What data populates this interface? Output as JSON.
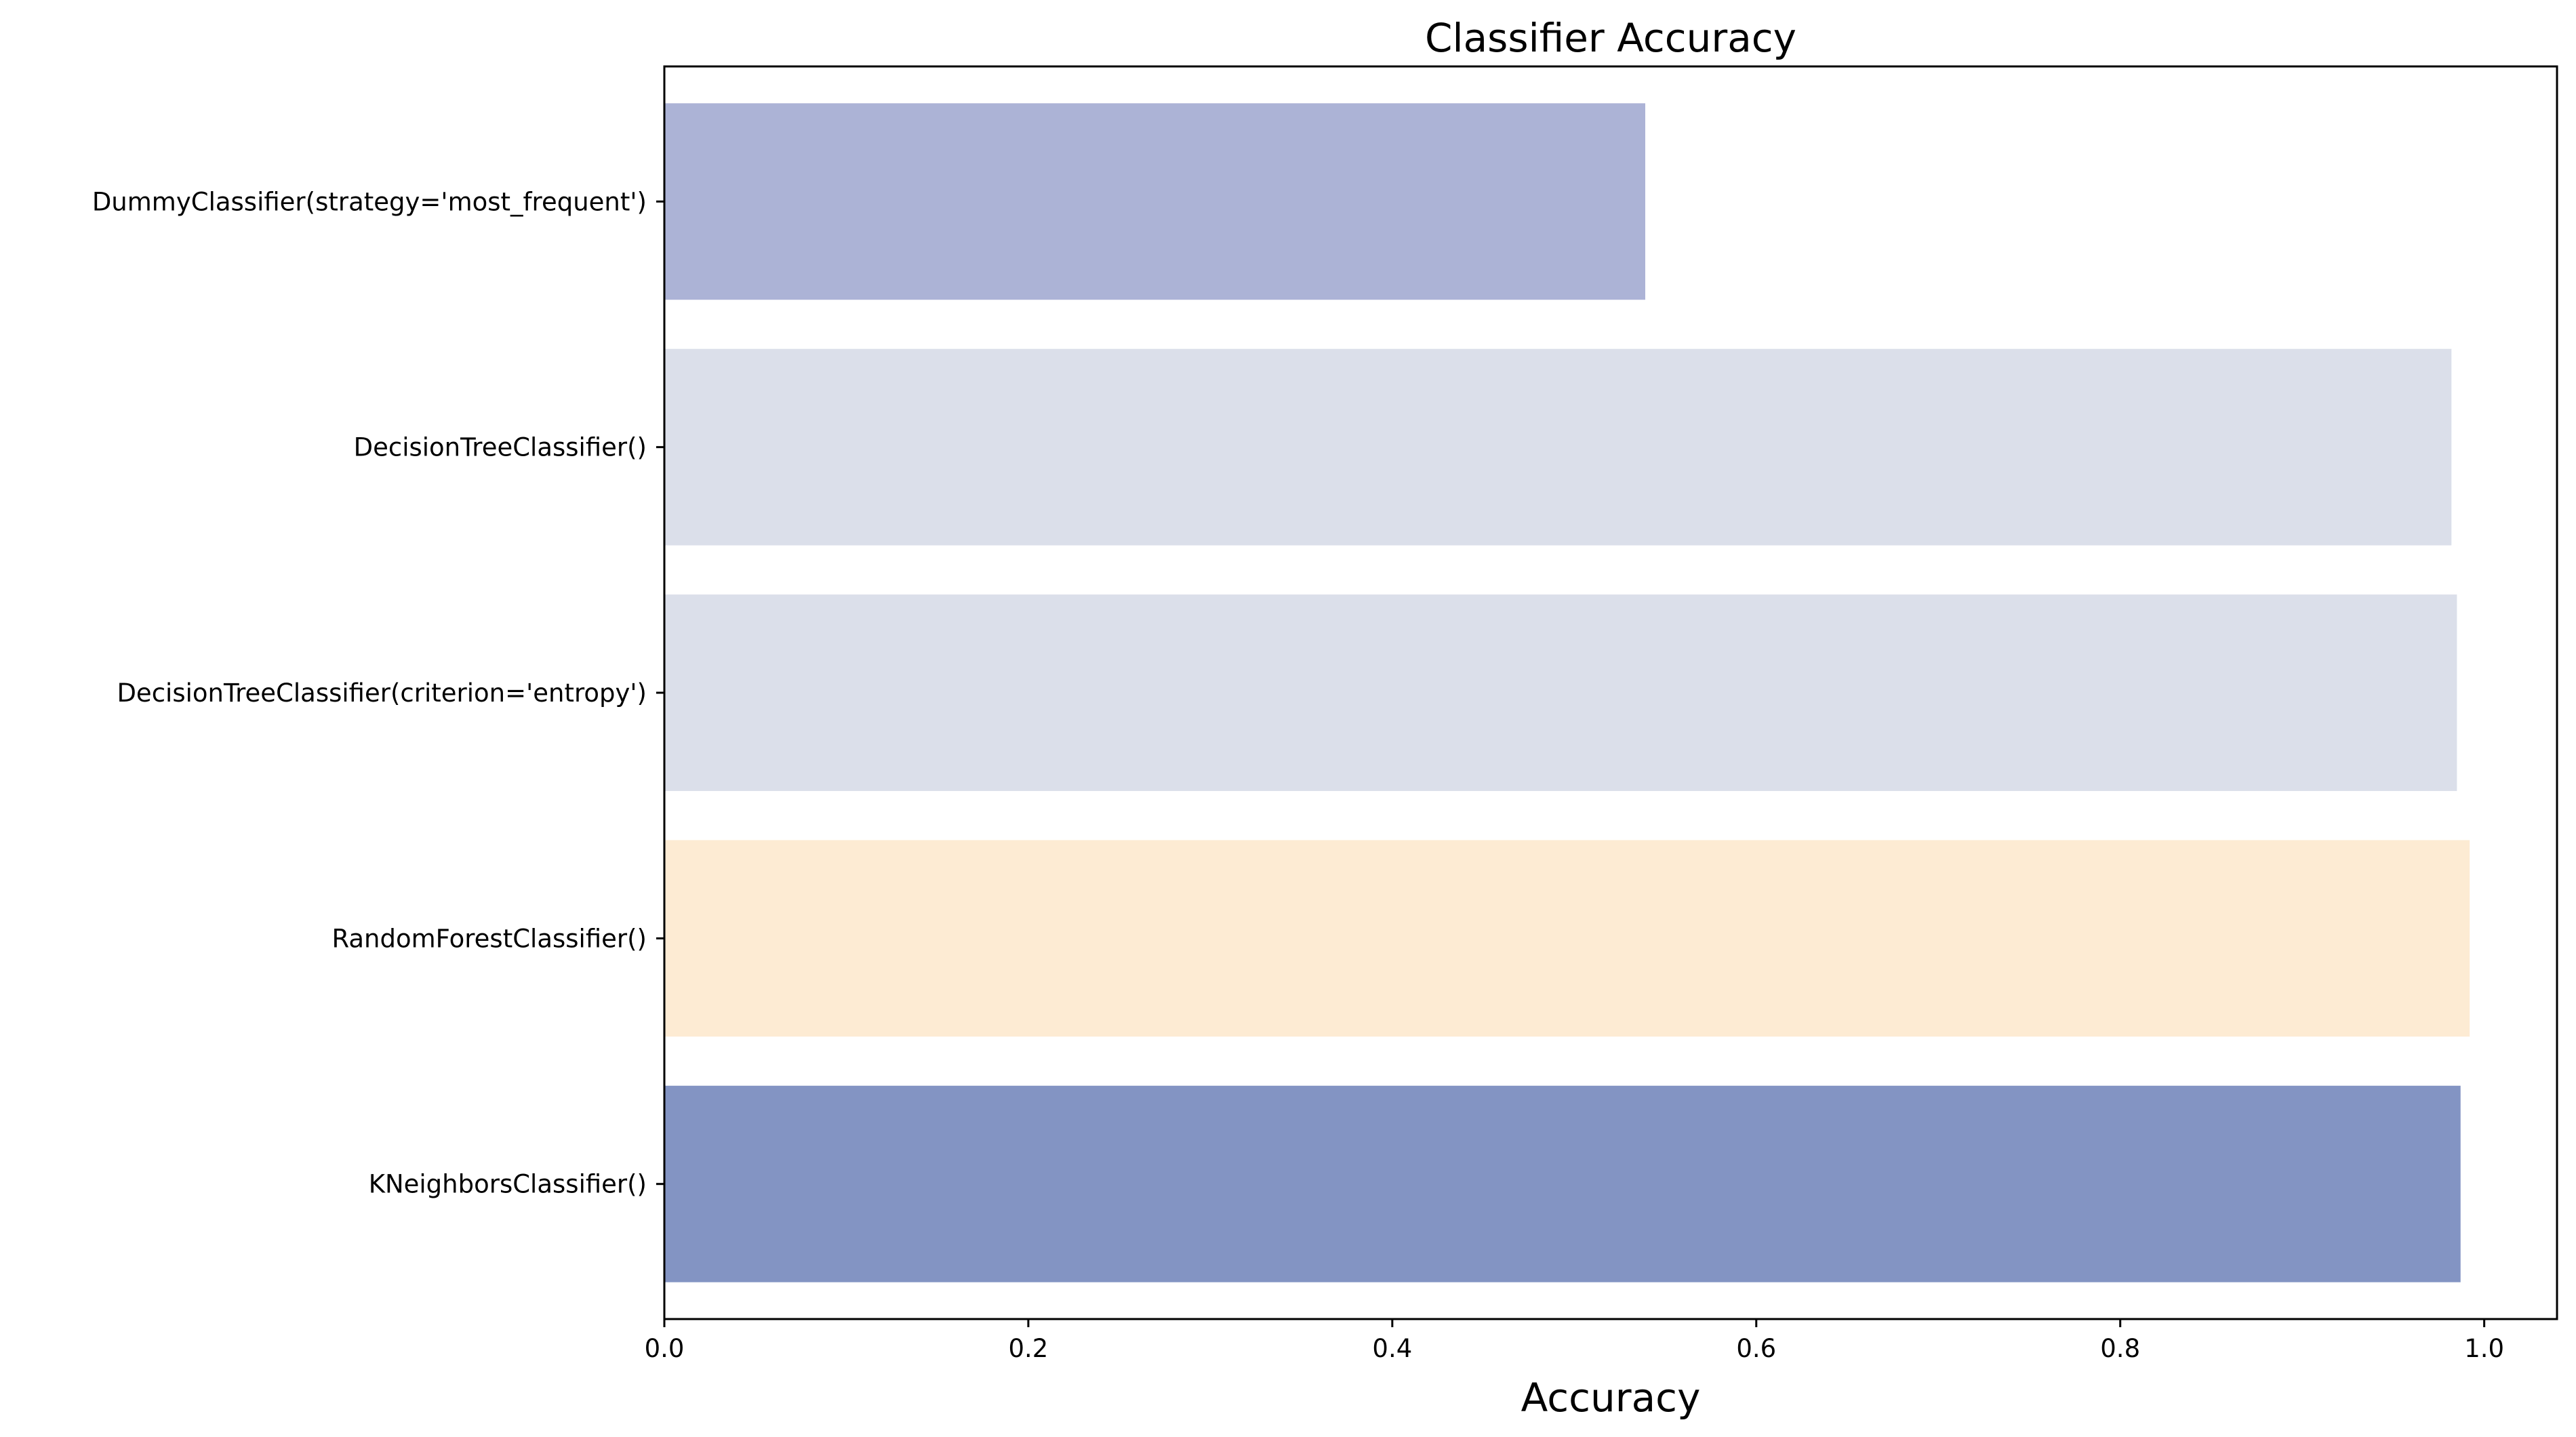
{
  "chart_data": {
    "type": "bar",
    "orientation": "horizontal",
    "title": "Classifier Accuracy",
    "xlabel": "Accuracy",
    "ylabel": "",
    "xlim": [
      0.0,
      1.04
    ],
    "xticks": [
      0.0,
      0.2,
      0.4,
      0.6,
      0.8,
      1.0
    ],
    "xtick_labels": [
      "0.0",
      "0.2",
      "0.4",
      "0.6",
      "0.8",
      "1.0"
    ],
    "grid": false,
    "categories": [
      "DummyClassifier(strategy='most_frequent')",
      "DecisionTreeClassifier()",
      "DecisionTreeClassifier(criterion='entropy')",
      "RandomForestClassifier()",
      "KNeighborsClassifier()"
    ],
    "values": [
      0.539,
      0.982,
      0.985,
      0.992,
      0.987
    ],
    "colors": [
      "#acb3d6",
      "#dbdfea",
      "#dbdfea",
      "#fdebd3",
      "#8394c3"
    ]
  }
}
